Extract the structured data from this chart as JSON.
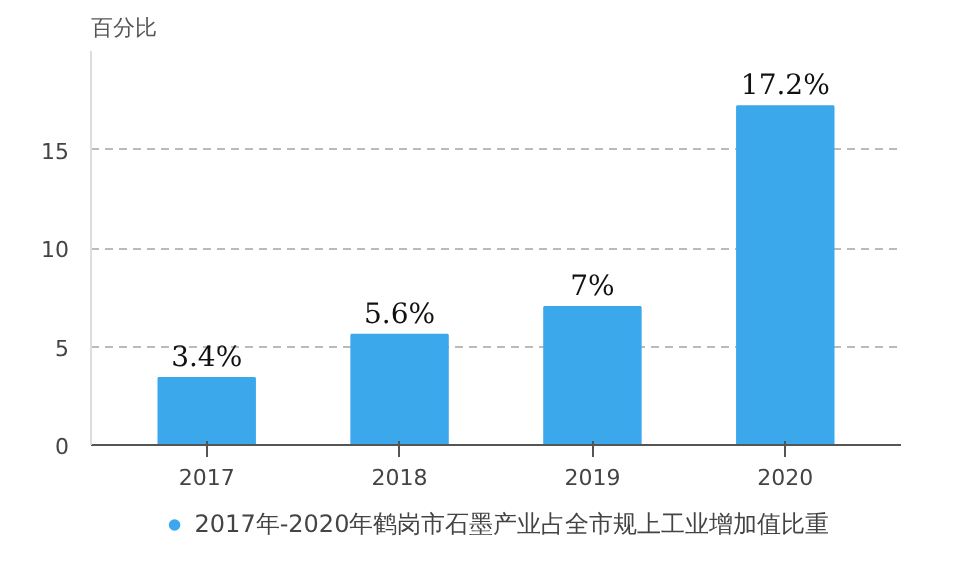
{
  "chart_data": {
    "type": "bar",
    "ylabel": "百分比",
    "categories": [
      "2017",
      "2018",
      "2019",
      "2020"
    ],
    "series": [
      {
        "name": "2017年-2020年鹤岗市石墨产业占全市规上工业增加值比重",
        "color": "#3ba8ec",
        "values": [
          3.4,
          5.6,
          7,
          17.2
        ]
      }
    ],
    "value_labels": [
      "3.4%",
      "5.6%",
      "7%",
      "17.2%"
    ],
    "ylim": [
      0,
      20
    ],
    "yticks": [
      0,
      5,
      10,
      15
    ],
    "grid": "y",
    "legend": "bottom"
  }
}
